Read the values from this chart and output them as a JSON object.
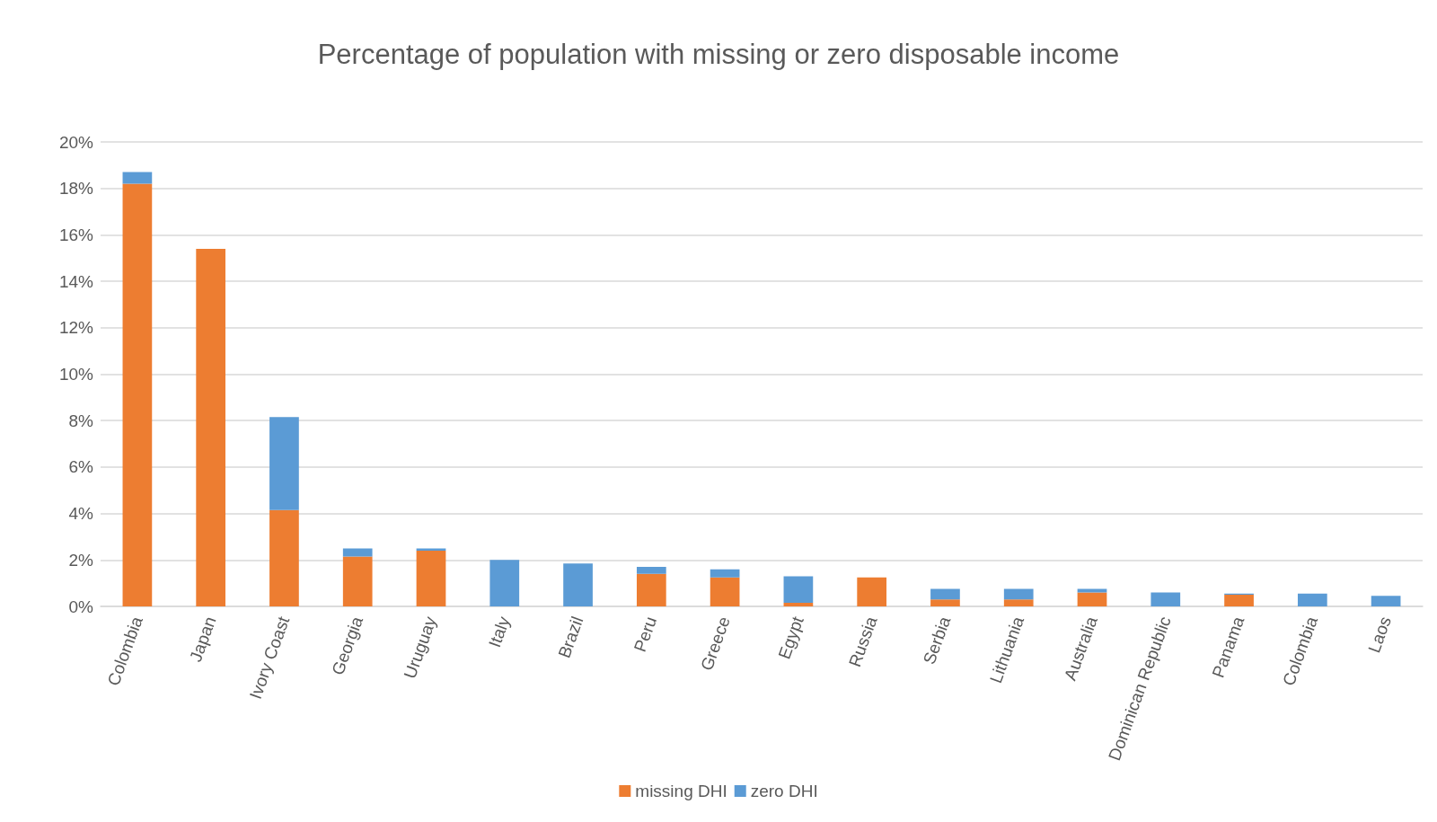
{
  "chart_data": {
    "type": "bar",
    "title": "Percentage of population with missing or zero disposable income",
    "categories": [
      "Colombia",
      "Japan",
      "Ivory Coast",
      "Georgia",
      "Uruguay",
      "Italy",
      "Brazil",
      "Peru",
      "Greece",
      "Egypt",
      "Russia",
      "Serbia",
      "Lithuania",
      "Australia",
      "Dominican Republic",
      "Panama",
      "Colombia",
      "Laos"
    ],
    "series": [
      {
        "name": "missing DHI",
        "color": "#ed7d31",
        "values": [
          18.2,
          15.4,
          4.15,
          2.15,
          2.4,
          0,
          0,
          1.4,
          1.25,
          0.15,
          1.25,
          0.3,
          0.3,
          0.6,
          0,
          0.5,
          0,
          0
        ]
      },
      {
        "name": "zero DHI",
        "color": "#5b9bd5",
        "values": [
          0.5,
          0,
          4.0,
          0.35,
          0.1,
          2.0,
          1.85,
          0.3,
          0.35,
          1.15,
          0,
          0.45,
          0.45,
          0.15,
          0.6,
          0.05,
          0.55,
          0.45
        ]
      }
    ],
    "stacked": true,
    "ylim": [
      0,
      20
    ],
    "yticks": [
      {
        "value": 0,
        "label": "0%"
      },
      {
        "value": 2,
        "label": "2%"
      },
      {
        "value": 4,
        "label": "4%"
      },
      {
        "value": 6,
        "label": "6%"
      },
      {
        "value": 8,
        "label": "8%"
      },
      {
        "value": 10,
        "label": "10%"
      },
      {
        "value": 12,
        "label": "12%"
      },
      {
        "value": 14,
        "label": "14%"
      },
      {
        "value": 16,
        "label": "16%"
      },
      {
        "value": 18,
        "label": "18%"
      },
      {
        "value": 20,
        "label": "20%"
      }
    ],
    "grid": "y",
    "legend": "bottom"
  }
}
